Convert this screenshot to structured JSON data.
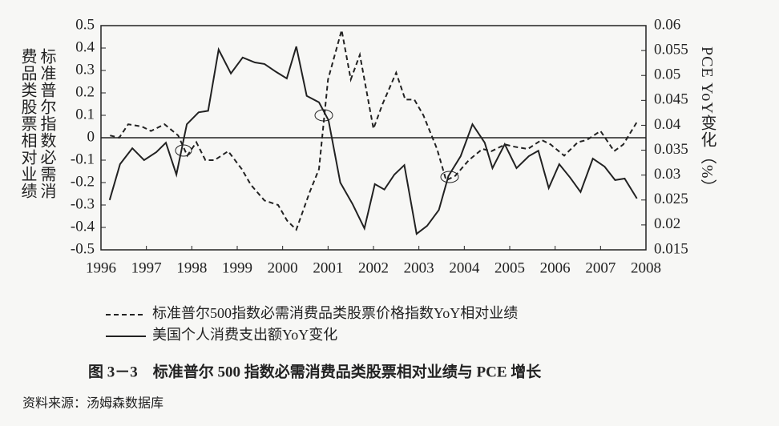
{
  "chart_data": {
    "type": "line",
    "y_label": "标准普尔指数必需消费品类股票相对业绩",
    "y2_label": "PCE YoY变化（%）",
    "caption": "图 3－3　标准普尔 500 指数必需消费品类股票相对业绩与 PCE 增长",
    "source": "资料来源：汤姆森数据库",
    "xlim": [
      1996,
      2008
    ],
    "xticks": [
      1996,
      1997,
      1998,
      1999,
      2000,
      2001,
      2002,
      2003,
      2004,
      2005,
      2006,
      2007,
      2008
    ],
    "ylim": [
      -0.5,
      0.5
    ],
    "yticks": [
      0.5,
      0.4,
      0.3,
      0.2,
      0.1,
      0,
      -0.1,
      -0.2,
      -0.3,
      -0.4,
      -0.5
    ],
    "y2lim": [
      0.015,
      0.06
    ],
    "y2ticks": [
      0.06,
      0.055,
      0.05,
      0.045,
      0.04,
      0.035,
      0.03,
      0.025,
      0.02,
      0.015
    ],
    "zero_line": true,
    "legend": "bottom",
    "series": [
      {
        "name": "标准普尔500指数必需消费品类股票价格指数YoY相对业绩",
        "color": "#222222",
        "line_style": "dashed",
        "axis": "y",
        "x": [
          1996.2,
          1996.4,
          1996.6,
          1996.9,
          1997.1,
          1997.4,
          1997.7,
          1997.9,
          1998.1,
          1998.3,
          1998.5,
          1998.8,
          1999.1,
          1999.3,
          1999.6,
          1999.9,
          2000.1,
          2000.3,
          2000.6,
          2000.8,
          2001.0,
          2001.3,
          2001.5,
          2001.7,
          2002.0,
          2002.2,
          2002.5,
          2002.7,
          2002.9,
          2003.1,
          2003.4,
          2003.6,
          2003.8,
          2004.1,
          2004.4,
          2004.6,
          2004.9,
          2005.1,
          2005.4,
          2005.7,
          2005.9,
          2006.2,
          2006.5,
          2006.7,
          2007.0,
          2007.3,
          2007.5,
          2007.8
        ],
        "values": [
          0.01,
          0.0,
          0.06,
          0.05,
          0.03,
          0.06,
          0.01,
          -0.08,
          -0.02,
          -0.1,
          -0.1,
          -0.06,
          -0.14,
          -0.21,
          -0.28,
          -0.3,
          -0.37,
          -0.41,
          -0.24,
          -0.14,
          0.26,
          0.48,
          0.26,
          0.37,
          0.04,
          0.15,
          0.29,
          0.17,
          0.17,
          0.1,
          -0.05,
          -0.19,
          -0.17,
          -0.1,
          -0.05,
          -0.06,
          -0.03,
          -0.04,
          -0.05,
          -0.01,
          -0.03,
          -0.08,
          -0.02,
          -0.01,
          0.03,
          -0.06,
          -0.03,
          0.07
        ]
      },
      {
        "name": "美国个人消费支出额YoY变化",
        "color": "#222222",
        "line_style": "solid",
        "axis": "y2",
        "x": [
          1996.19,
          1996.42,
          1996.69,
          1996.95,
          1997.22,
          1997.43,
          1997.66,
          1997.89,
          1998.15,
          1998.36,
          1998.59,
          1998.86,
          1999.12,
          1999.39,
          1999.6,
          1999.86,
          2000.09,
          2000.3,
          2000.53,
          2000.8,
          2001.01,
          2001.27,
          2001.54,
          2001.8,
          2002.03,
          2002.24,
          2002.46,
          2002.68,
          2002.95,
          2003.18,
          2003.44,
          2003.65,
          2003.92,
          2004.18,
          2004.45,
          2004.62,
          2004.89,
          2005.15,
          2005.42,
          2005.63,
          2005.86,
          2006.09,
          2006.33,
          2006.56,
          2006.83,
          2007.09,
          2007.32,
          2007.53,
          2007.8
        ],
        "values": [
          0.025,
          0.0322,
          0.0354,
          0.033,
          0.0346,
          0.0365,
          0.0301,
          0.0402,
          0.0426,
          0.0429,
          0.0552,
          0.0504,
          0.0536,
          0.0526,
          0.0523,
          0.0507,
          0.0494,
          0.0558,
          0.0459,
          0.0446,
          0.041,
          0.0285,
          0.0242,
          0.0193,
          0.0282,
          0.0271,
          0.0301,
          0.032,
          0.0182,
          0.0198,
          0.023,
          0.0298,
          0.0338,
          0.0402,
          0.0365,
          0.0314,
          0.0362,
          0.0314,
          0.0338,
          0.0349,
          0.0274,
          0.0322,
          0.0295,
          0.0266,
          0.0333,
          0.0317,
          0.029,
          0.0293,
          0.0253
        ]
      }
    ]
  }
}
